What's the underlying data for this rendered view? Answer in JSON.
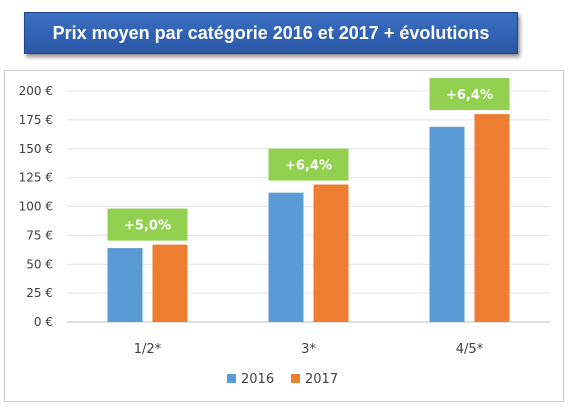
{
  "title": "Prix moyen par catégorie 2016 et 2017 + évolutions",
  "chart_data": {
    "type": "bar",
    "categories": [
      "1/2*",
      "3*",
      "4/5*"
    ],
    "series": [
      {
        "name": "2016",
        "values": [
          64,
          112,
          169
        ],
        "color": "#5b9bd5"
      },
      {
        "name": "2017",
        "values": [
          67,
          119,
          180
        ],
        "color": "#ed7d31"
      }
    ],
    "annotations": [
      "+5,0%",
      "+6,4%",
      "+6,4%"
    ],
    "annotation_color": "#92d050",
    "y_ticks": [
      "0 €",
      "25 €",
      "50 €",
      "75 €",
      "100 €",
      "125 €",
      "150 €",
      "175 €",
      "200 €"
    ],
    "ylim": [
      0,
      200
    ],
    "grid": true,
    "legend_position": "bottom"
  }
}
